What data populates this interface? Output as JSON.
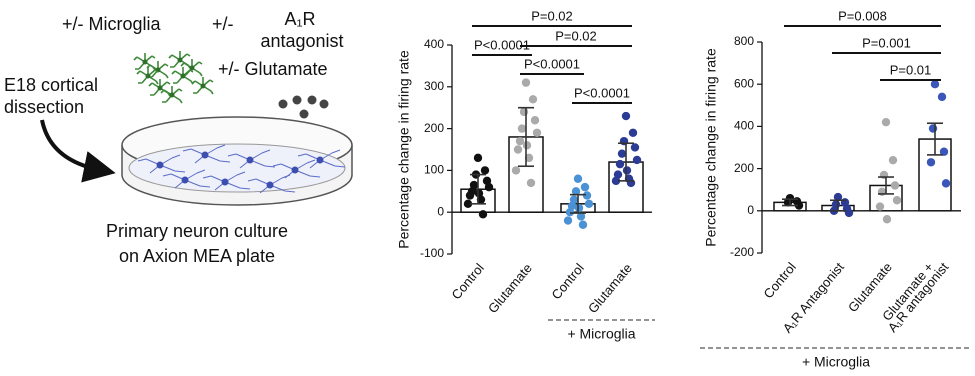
{
  "schematic": {
    "microglia": "+/- Microglia",
    "antagonist_prefix": "+/-",
    "antagonist_line1": "A₁R",
    "antagonist_line2": "antagonist",
    "glutamate": "+/- Glutamate",
    "dissection_line1": "E18 cortical",
    "dissection_line2": "dissection",
    "culture_line1": "Primary neuron culture",
    "culture_line2": "on Axion MEA plate"
  },
  "chart_data": [
    {
      "type": "bar",
      "ylabel": "Percentage change in firing rate",
      "categories": [
        "Control",
        "Glutamate",
        "Control",
        "Glutamate"
      ],
      "group_label": "+ Microglia",
      "values": [
        55,
        180,
        20,
        120
      ],
      "errors": [
        35,
        70,
        22,
        45
      ],
      "point_colors": [
        "#111111",
        "#aaaaaa",
        "#4a92d4",
        "#2c3b94"
      ],
      "points": [
        [
          130,
          100,
          90,
          75,
          65,
          60,
          50,
          45,
          40,
          30,
          20,
          -5
        ],
        [
          310,
          270,
          240,
          220,
          200,
          190,
          170,
          160,
          150,
          130,
          100,
          70
        ],
        [
          80,
          60,
          50,
          40,
          30,
          20,
          15,
          10,
          0,
          -10,
          -20,
          -30
        ],
        [
          230,
          190,
          170,
          155,
          140,
          125,
          115,
          100,
          90,
          80,
          75,
          70
        ]
      ],
      "comparisons": [
        "P=0.02",
        "P<0.0001",
        "P=0.02",
        "P<0.0001",
        "P<0.0001"
      ],
      "ylim": [
        -100,
        400
      ],
      "yticks": [
        -100,
        0,
        100,
        200,
        300,
        400
      ]
    },
    {
      "type": "bar",
      "ylabel": "Percentage change in firing rate",
      "categories": [
        "Control",
        "A₁R Antagonist",
        "Glutamate",
        [
          "Glutamate +",
          "A₁R antagonist"
        ]
      ],
      "group_label": "+ Microglia",
      "values": [
        40,
        25,
        120,
        340
      ],
      "errors": [
        15,
        25,
        40,
        75
      ],
      "point_colors": [
        "#111111",
        "#2c3b94",
        "#aaaaaa",
        "#3a56b8"
      ],
      "points": [
        [
          60,
          45,
          40,
          25
        ],
        [
          65,
          40,
          30,
          10,
          0,
          -10
        ],
        [
          420,
          240,
          170,
          120,
          90,
          50,
          20,
          -40
        ],
        [
          600,
          540,
          390,
          280,
          230,
          130
        ]
      ],
      "comparisons": [
        "P=0.008",
        "P=0.001",
        "P=0.01"
      ],
      "ylim": [
        -200,
        800
      ],
      "yticks": [
        -200,
        0,
        200,
        400,
        600,
        800
      ]
    }
  ]
}
